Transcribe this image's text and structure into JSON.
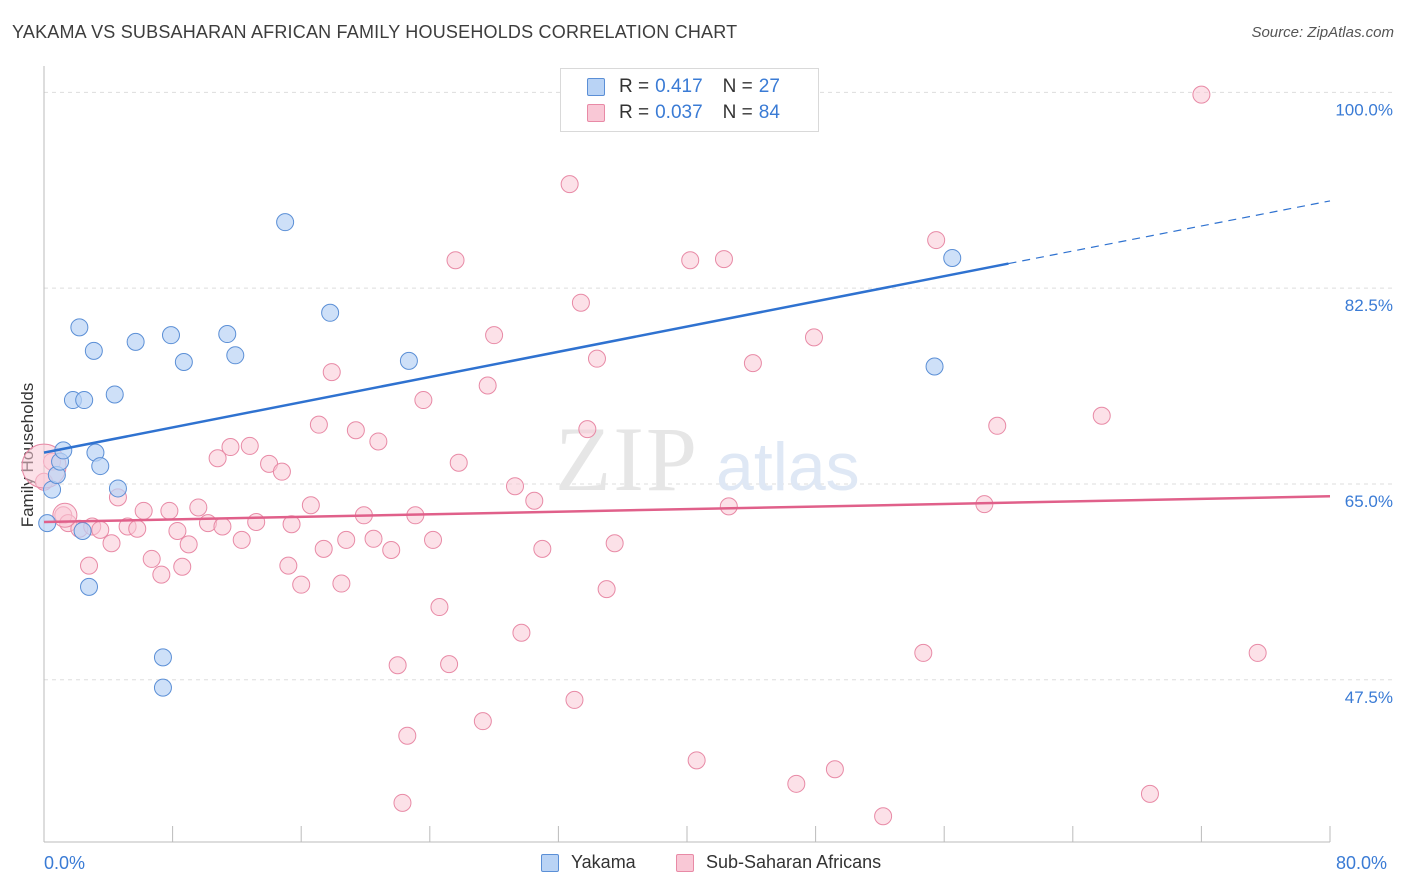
{
  "header": {
    "title": "YAKAMA VS SUBSAHARAN AFRICAN FAMILY HOUSEHOLDS CORRELATION CHART",
    "source": "Source: ZipAtlas.com"
  },
  "colors": {
    "yakama_fill": "#b9d3f5",
    "yakama_stroke": "#5b8fd6",
    "yakama_line": "#2f72d0",
    "ssa_fill": "#f9c8d6",
    "ssa_stroke": "#e88aa6",
    "ssa_line": "#e0608a",
    "value_text": "#3a7bd5",
    "grid": "#dddddd"
  },
  "legend_top": {
    "rows": [
      {
        "r_label": "R =",
        "r_value": "0.417",
        "n_label": "N =",
        "n_value": "27"
      },
      {
        "r_label": "R =",
        "r_value": "0.037",
        "n_label": "N =",
        "n_value": "84"
      }
    ]
  },
  "legend_bottom": {
    "items": [
      {
        "label": "Yakama"
      },
      {
        "label": "Sub-Saharan Africans"
      }
    ]
  },
  "watermark": {
    "zip": "ZIP",
    "atlas": "atlas"
  },
  "chart_data": {
    "type": "scatter",
    "title": "YAKAMA VS SUBSAHARAN AFRICAN FAMILY HOUSEHOLDS CORRELATION CHART",
    "xlabel": "",
    "ylabel": "Family Households",
    "xlim": [
      0,
      80
    ],
    "ylim": [
      33,
      102
    ],
    "x_tick_labels": [
      "0.0%",
      "80.0%"
    ],
    "y_ticks": [
      47.5,
      65.0,
      82.5,
      100.0
    ],
    "y_tick_labels": [
      "47.5%",
      "65.0%",
      "82.5%",
      "100.0%"
    ],
    "series": [
      {
        "name": "Yakama",
        "r": 0.417,
        "n": 27,
        "trend": {
          "x0": 0,
          "y0": 67.8,
          "x1": 60,
          "y1": 84.7,
          "dash_to_x": 80,
          "dash_to_y": 90.3
        },
        "points": [
          [
            0.2,
            61.5
          ],
          [
            0.5,
            64.5
          ],
          [
            0.8,
            65.8
          ],
          [
            1.0,
            67.0
          ],
          [
            1.2,
            68.0
          ],
          [
            1.8,
            72.5
          ],
          [
            2.2,
            79.0
          ],
          [
            2.5,
            72.5
          ],
          [
            2.4,
            60.8
          ],
          [
            2.8,
            55.8
          ],
          [
            3.1,
            76.9
          ],
          [
            3.2,
            67.8
          ],
          [
            3.5,
            66.6
          ],
          [
            4.4,
            73.0
          ],
          [
            4.6,
            64.6
          ],
          [
            5.7,
            77.7
          ],
          [
            7.4,
            49.5
          ],
          [
            7.4,
            46.8
          ],
          [
            7.9,
            78.3
          ],
          [
            8.7,
            75.9
          ],
          [
            11.4,
            78.4
          ],
          [
            11.9,
            76.5
          ],
          [
            15.0,
            88.4
          ],
          [
            17.8,
            80.3
          ],
          [
            22.7,
            76.0
          ],
          [
            55.4,
            75.5
          ],
          [
            56.5,
            85.2
          ]
        ]
      },
      {
        "name": "Sub-Saharan Africans",
        "r": 0.037,
        "n": 84,
        "trend": {
          "x0": 0,
          "y0": 61.6,
          "x1": 80,
          "y1": 63.9
        },
        "points": [
          [
            0.5,
            67.0
          ],
          [
            1.2,
            62.2
          ],
          [
            1.5,
            61.5
          ],
          [
            2.2,
            61.0
          ],
          [
            2.8,
            57.7
          ],
          [
            3.0,
            61.2
          ],
          [
            3.5,
            60.9
          ],
          [
            4.2,
            59.7
          ],
          [
            4.6,
            63.8
          ],
          [
            5.2,
            61.2
          ],
          [
            5.8,
            61.0
          ],
          [
            6.2,
            62.6
          ],
          [
            6.7,
            58.3
          ],
          [
            7.3,
            56.9
          ],
          [
            7.8,
            62.6
          ],
          [
            8.3,
            60.8
          ],
          [
            8.6,
            57.6
          ],
          [
            9.0,
            59.6
          ],
          [
            9.6,
            62.9
          ],
          [
            10.2,
            61.5
          ],
          [
            10.8,
            67.3
          ],
          [
            11.1,
            61.2
          ],
          [
            11.6,
            68.3
          ],
          [
            12.3,
            60.0
          ],
          [
            12.8,
            68.4
          ],
          [
            13.2,
            61.6
          ],
          [
            14.0,
            66.8
          ],
          [
            14.8,
            66.1
          ],
          [
            15.2,
            57.7
          ],
          [
            15.4,
            61.4
          ],
          [
            16.0,
            56.0
          ],
          [
            16.6,
            63.1
          ],
          [
            17.1,
            70.3
          ],
          [
            17.4,
            59.2
          ],
          [
            17.9,
            75.0
          ],
          [
            18.5,
            56.1
          ],
          [
            18.8,
            60.0
          ],
          [
            19.4,
            69.8
          ],
          [
            19.9,
            62.2
          ],
          [
            20.5,
            60.1
          ],
          [
            20.8,
            68.8
          ],
          [
            21.6,
            59.1
          ],
          [
            22.0,
            48.8
          ],
          [
            22.3,
            36.5
          ],
          [
            22.6,
            42.5
          ],
          [
            23.1,
            62.2
          ],
          [
            23.6,
            72.5
          ],
          [
            24.2,
            60.0
          ],
          [
            24.6,
            54.0
          ],
          [
            25.2,
            48.9
          ],
          [
            25.6,
            85.0
          ],
          [
            25.8,
            66.9
          ],
          [
            27.3,
            43.8
          ],
          [
            27.6,
            73.8
          ],
          [
            28.0,
            78.3
          ],
          [
            29.3,
            64.8
          ],
          [
            29.7,
            51.7
          ],
          [
            30.5,
            63.5
          ],
          [
            31.0,
            59.2
          ],
          [
            32.7,
            91.8
          ],
          [
            33.0,
            45.7
          ],
          [
            33.4,
            81.2
          ],
          [
            33.8,
            69.9
          ],
          [
            34.4,
            76.2
          ],
          [
            35.0,
            55.6
          ],
          [
            35.5,
            59.7
          ],
          [
            40.2,
            85.0
          ],
          [
            40.6,
            40.3
          ],
          [
            42.3,
            85.1
          ],
          [
            42.6,
            63.0
          ],
          [
            44.1,
            75.8
          ],
          [
            46.8,
            38.2
          ],
          [
            47.9,
            78.1
          ],
          [
            49.2,
            39.5
          ],
          [
            52.2,
            35.3
          ],
          [
            54.7,
            49.9
          ],
          [
            55.5,
            86.8
          ],
          [
            58.5,
            63.2
          ],
          [
            59.3,
            70.2
          ],
          [
            65.8,
            71.1
          ],
          [
            68.8,
            37.3
          ],
          [
            72.0,
            99.8
          ],
          [
            75.5,
            49.9
          ],
          [
            0.0,
            65.2
          ]
        ]
      }
    ]
  }
}
